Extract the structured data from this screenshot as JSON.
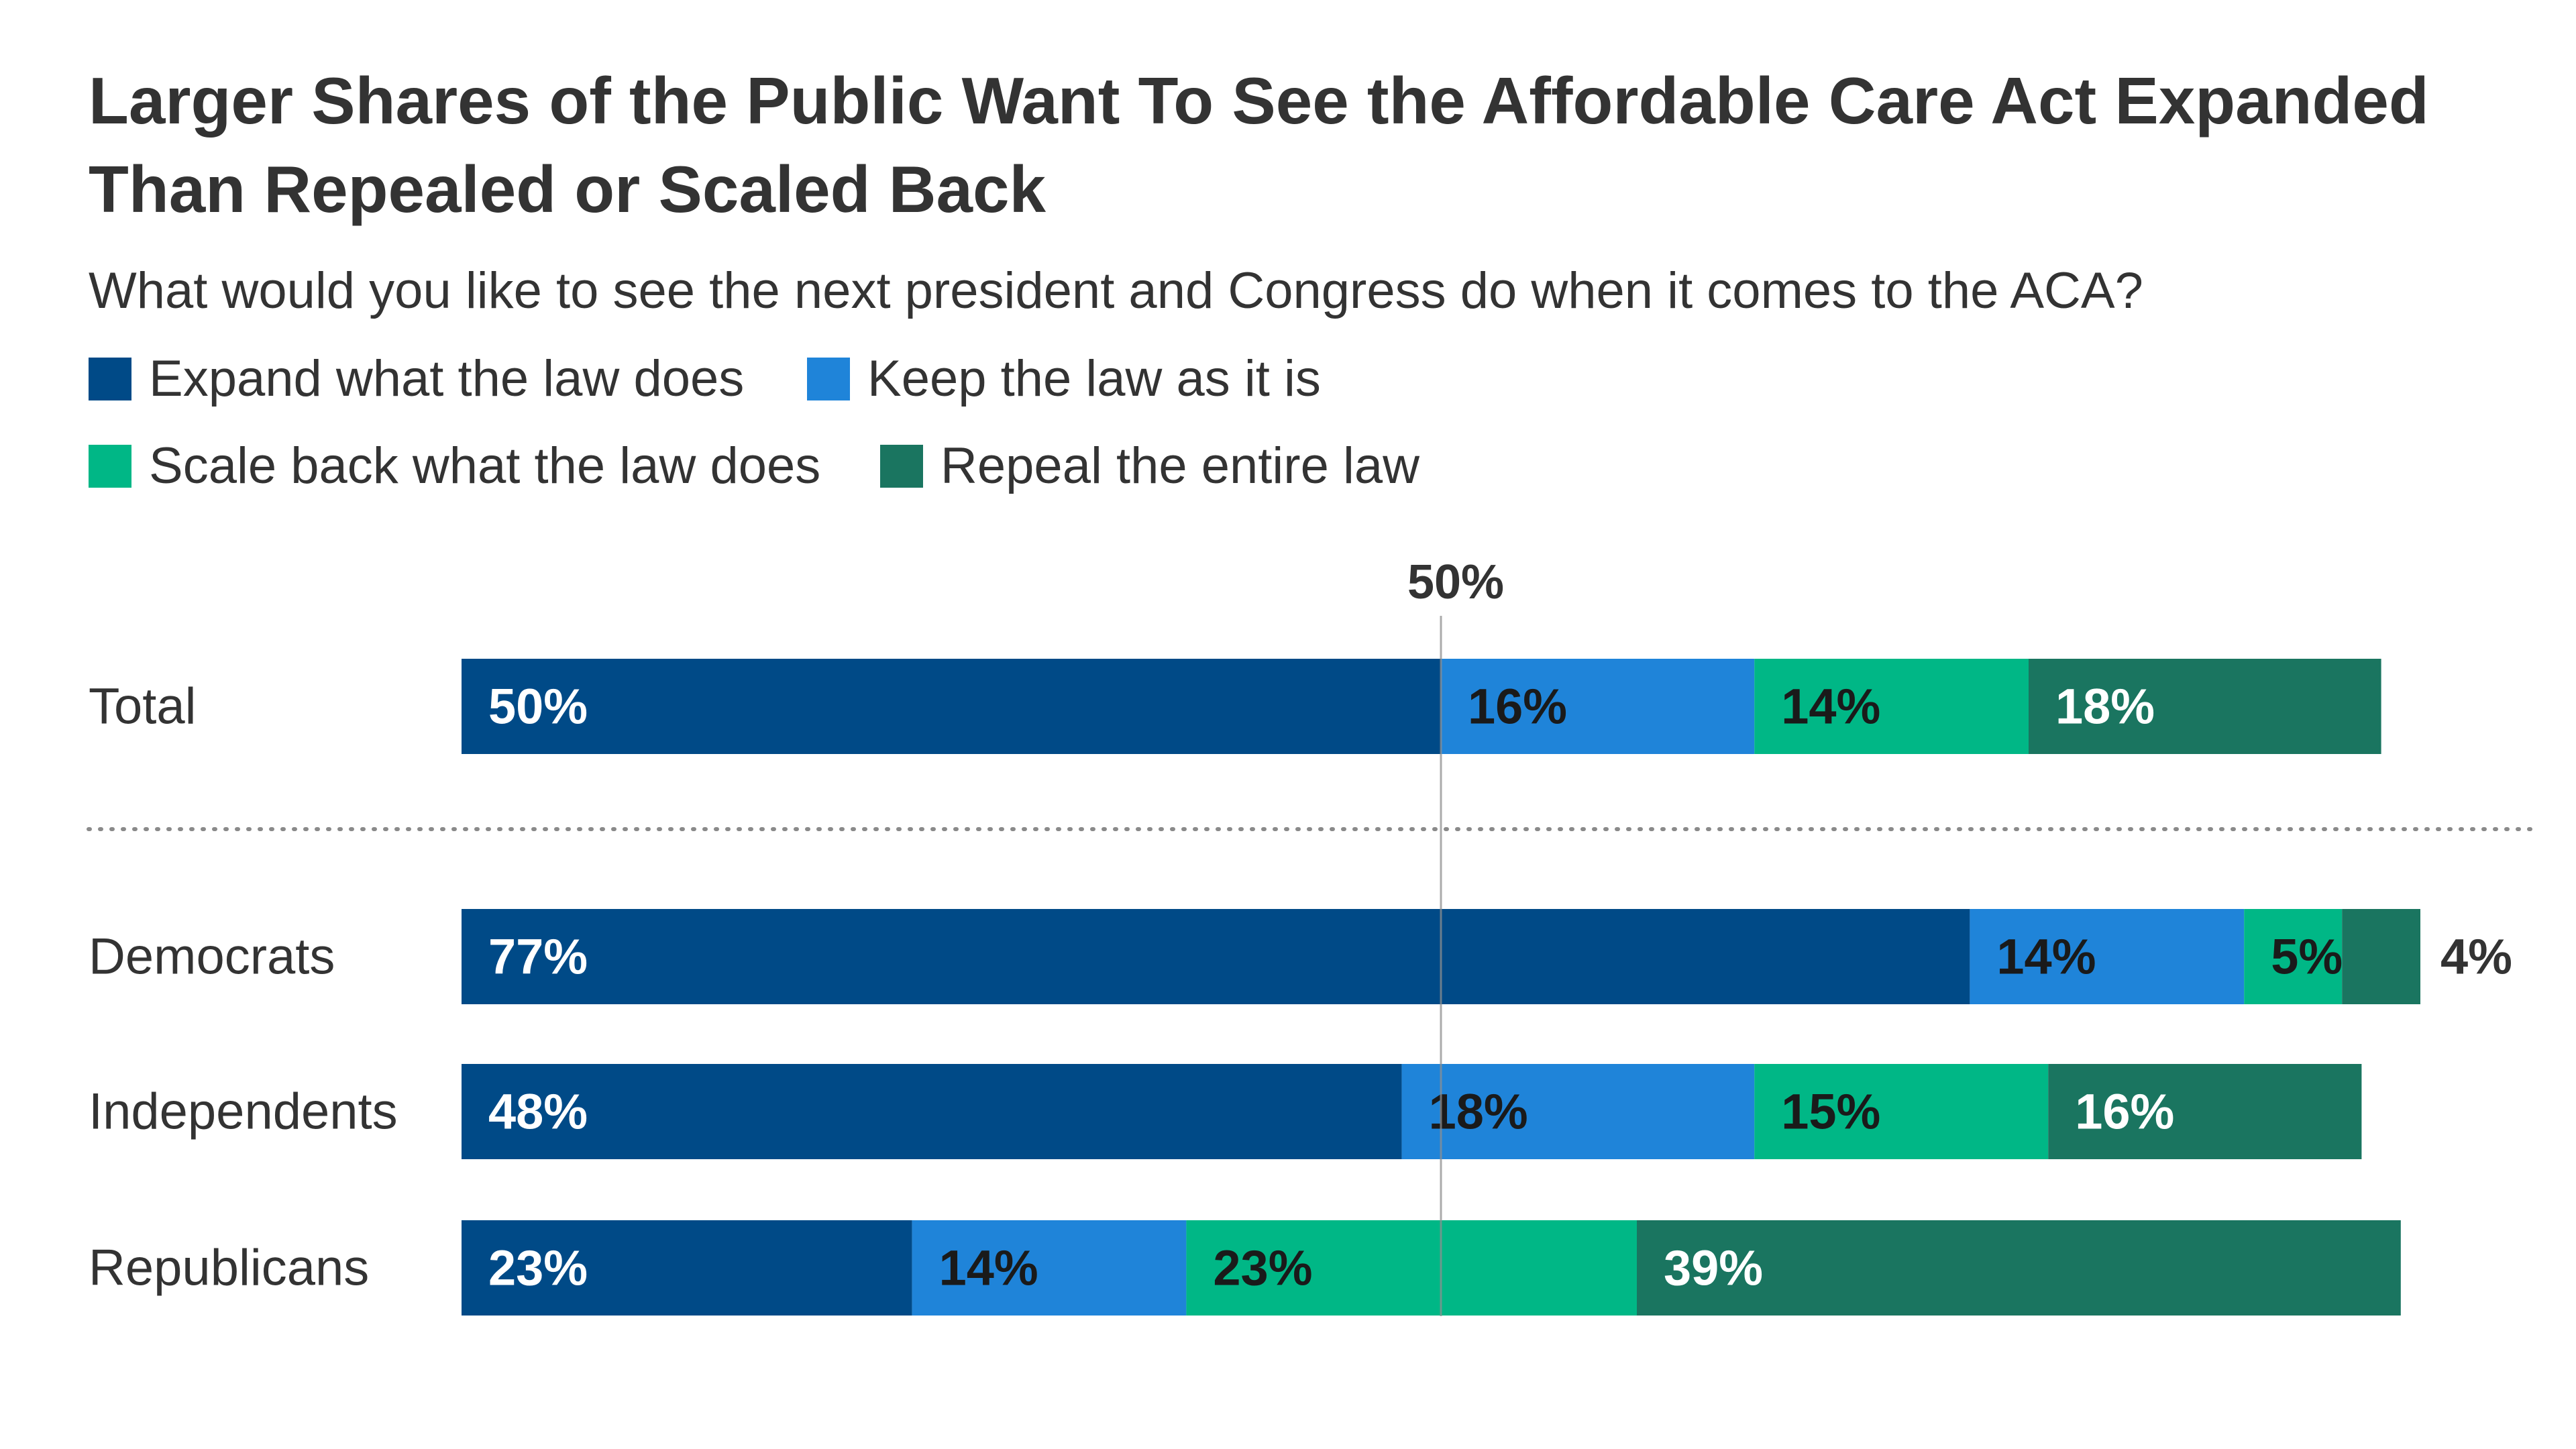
{
  "title": "Larger Shares of the Public Want To See the Affordable Care Act Expanded Than Repealed or Scaled Back",
  "subtitle": "What would you like to see the next president and Congress do when it comes to the ACA?",
  "legend": [
    {
      "label": "Expand what the law does",
      "color": "#004a87"
    },
    {
      "label": "Keep the law as it is",
      "color": "#1f84d9"
    },
    {
      "label": "Scale back what the law does",
      "color": "#00b786"
    },
    {
      "label": "Repeal the entire law",
      "color": "#1a7560"
    }
  ],
  "chart_data": {
    "type": "bar",
    "orientation": "horizontal",
    "stacked": true,
    "title": "Larger Shares of the Public Want To See the Affordable Care Act Expanded Than Repealed or Scaled Back",
    "subtitle": "What would you like to see the next president and Congress do when it comes to the ACA?",
    "categories": [
      "Total",
      "Democrats",
      "Independents",
      "Republicans"
    ],
    "series": [
      {
        "name": "Expand what the law does",
        "color": "#004a87",
        "values": [
          50,
          77,
          48,
          23
        ],
        "labels": [
          "50%",
          "77%",
          "48%",
          "23%"
        ]
      },
      {
        "name": "Keep the law as it is",
        "color": "#1f84d9",
        "values": [
          16,
          14,
          18,
          14
        ],
        "labels": [
          "16%",
          "14%",
          "18%",
          "14%"
        ]
      },
      {
        "name": "Scale back what the law does",
        "color": "#00b786",
        "values": [
          14,
          5,
          15,
          23
        ],
        "labels": [
          "14%",
          "5%",
          "15%",
          "23%"
        ]
      },
      {
        "name": "Repeal the entire law",
        "color": "#1a7560",
        "values": [
          18,
          4,
          16,
          39
        ],
        "labels": [
          "18%",
          "4%",
          "16%",
          "39%"
        ]
      }
    ],
    "reference_line": {
      "value": 50,
      "label": "50%"
    },
    "separator_after": "Total",
    "xlim": [
      0,
      100
    ],
    "legend_position": "top-left",
    "grid": false
  }
}
